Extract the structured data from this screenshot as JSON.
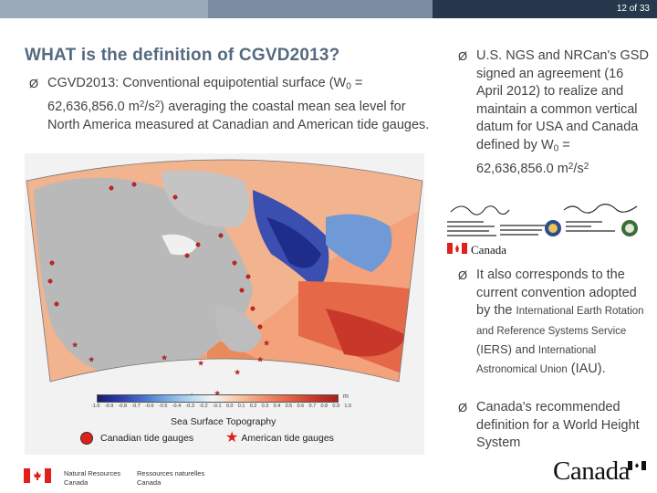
{
  "slide": {
    "number": "12",
    "of_label": "of",
    "total": "33"
  },
  "title": "WHAT is the definition of CGVD2013?",
  "bullets": {
    "left": {
      "prefix": "CGVD2013: Conventional equipotential surface (W",
      "sub": "0",
      "mid": " = 62,636,856.0 m",
      "sup1": "2",
      "slash": "/s",
      "sup2": "2",
      "suffix": ") averaging the coastal mean sea level for North America measured at Canadian and American tide gauges."
    },
    "agreement": {
      "prefix": "U.S. NGS and NRCan's GSD signed an agreement (16 April 2012) to realize and maintain a common vertical datum for USA and Canada defined by W",
      "sub": "0",
      "mid": " = 62,636,856.0 m",
      "sup1": "2",
      "slash": "/s",
      "sup2": "2"
    },
    "convention": {
      "part1": "It also corresponds to the current convention adopted by the ",
      "small1": "International Earth Rotation and Reference Systems Service",
      "part2": " (IERS) and ",
      "small2": "International Astronomical Union",
      "part3": " (IAU)."
    },
    "recommended": "Canada's recommended definition for a World Height System"
  },
  "map": {
    "legend_title": "Sea Surface Topography",
    "unit": "m",
    "colorbar_ticks": [
      "-1.0",
      "-0.9",
      "-0.8",
      "-0.7",
      "-0.6",
      "-0.5",
      "-0.4",
      "-0.3",
      "-0.2",
      "-0.1",
      "0.0",
      "0.1",
      "0.2",
      "0.3",
      "0.4",
      "0.5",
      "0.6",
      "0.7",
      "0.8",
      "0.9",
      "1.0"
    ],
    "canadian_label": "Canadian tide gauges",
    "american_label": "American tide gauges",
    "canadian_color": "#e0201a"
  },
  "footer": {
    "en_line1": "Natural Resources",
    "en_line2": "Canada",
    "fr_line1": "Ressources naturelles",
    "fr_line2": "Canada",
    "wordmark": "Canada"
  },
  "colors": {
    "title": "#556a80",
    "topbar_dark": "#26394c",
    "flag_red": "#e0201a"
  }
}
